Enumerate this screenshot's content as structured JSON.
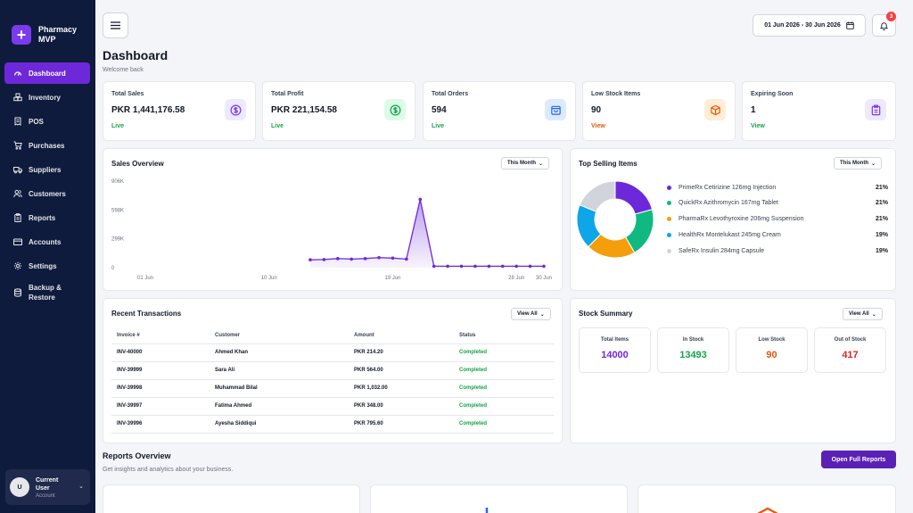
{
  "brand": {
    "name": "Pharmacy MVP",
    "logo": "+"
  },
  "sidebar": {
    "items": [
      {
        "label": "Dashboard",
        "icon": "gauge-icon",
        "active": true
      },
      {
        "label": "Inventory",
        "icon": "boxes-icon"
      },
      {
        "label": "POS",
        "icon": "receipt-icon"
      },
      {
        "label": "Purchases",
        "icon": "cart-icon"
      },
      {
        "label": "Suppliers",
        "icon": "truck-icon"
      },
      {
        "label": "Customers",
        "icon": "users-icon"
      },
      {
        "label": "Reports",
        "icon": "clipboard-icon"
      },
      {
        "label": "Accounts",
        "icon": "card-icon"
      },
      {
        "label": "Settings",
        "icon": "gear-icon"
      },
      {
        "label": "Backup & Restore",
        "icon": "database-icon"
      }
    ]
  },
  "user": {
    "initial": "U",
    "name": "Current User",
    "role": "Account"
  },
  "header": {
    "date_range": "01 Jun 2026 - 30 Jun 2026",
    "notification_count": "3",
    "title": "Dashboard",
    "subtitle": "Welcome back"
  },
  "stats": [
    {
      "title": "Total Sales",
      "value": "PKR 1,441,176.58",
      "link": "Live",
      "link_color": "#16a34a",
      "icon": "dollar-icon",
      "icon_color": "#7c3aed",
      "icon_bg": "#ede9fe"
    },
    {
      "title": "Total Profit",
      "value": "PKR 221,154.58",
      "link": "Live",
      "link_color": "#16a34a",
      "icon": "dollar-icon",
      "icon_color": "#16a34a",
      "icon_bg": "#dcfce7"
    },
    {
      "title": "Total Orders",
      "value": "594",
      "link": "Live",
      "link_color": "#16a34a",
      "icon": "bag-icon",
      "icon_color": "#2563eb",
      "icon_bg": "#dbeafe"
    },
    {
      "title": "Low Stock Items",
      "value": "90",
      "link": "View",
      "link_color": "#ea580c",
      "icon": "package-icon",
      "icon_color": "#ea580c",
      "icon_bg": "#ffedd5"
    },
    {
      "title": "Expiring Soon",
      "value": "1",
      "link": "View",
      "link_color": "#16a34a",
      "icon": "clipboard-icon",
      "icon_color": "#7c3aed",
      "icon_bg": "#ede9fe"
    }
  ],
  "sales_overview": {
    "title": "Sales Overview",
    "period": "This Month"
  },
  "top_selling": {
    "title": "Top Selling Items",
    "period": "This Month"
  },
  "recent_transactions": {
    "title": "Recent Transactions",
    "view_all": "View All",
    "columns": [
      "Invoice #",
      "Customer",
      "Amount",
      "Status"
    ],
    "rows": [
      [
        "INV-40000",
        "Ahmed Khan",
        "PKR 214.20",
        "Completed"
      ],
      [
        "INV-39999",
        "Sara Ali",
        "PKR 564.00",
        "Completed"
      ],
      [
        "INV-39998",
        "Muhammad Bilal",
        "PKR 1,032.00",
        "Completed"
      ],
      [
        "INV-39997",
        "Fatima Ahmed",
        "PKR 348.00",
        "Completed"
      ],
      [
        "INV-39996",
        "Ayesha Siddiqui",
        "PKR 795.60",
        "Completed"
      ]
    ]
  },
  "stock_summary": {
    "title": "Stock Summary",
    "view_all": "View All",
    "boxes": [
      {
        "label": "Total Items",
        "value": "14000",
        "color": "#6d28d9"
      },
      {
        "label": "In Stock",
        "value": "13493",
        "color": "#16a34a"
      },
      {
        "label": "Low Stock",
        "value": "90",
        "color": "#ea580c"
      },
      {
        "label": "Out of Stock",
        "value": "417",
        "color": "#dc2626"
      }
    ]
  },
  "reports_overview": {
    "title": "Reports Overview",
    "subtitle": "Get insights and analytics about your business.",
    "button": "Open Full Reports"
  },
  "chart_data": [
    {
      "type": "line",
      "x": [
        "01 Jun",
        "02 Jun",
        "03 Jun",
        "04 Jun",
        "05 Jun",
        "06 Jun",
        "07 Jun",
        "08 Jun",
        "09 Jun",
        "10 Jun",
        "11 Jun",
        "12 Jun",
        "13 Jun",
        "14 Jun",
        "15 Jun",
        "16 Jun",
        "17 Jun",
        "18 Jun",
        "19 Jun",
        "20 Jun",
        "21 Jun",
        "22 Jun",
        "23 Jun",
        "24 Jun",
        "25 Jun",
        "26 Jun",
        "27 Jun",
        "28 Jun",
        "29 Jun",
        "30 Jun"
      ],
      "series": [
        {
          "values": [
            null,
            null,
            null,
            null,
            null,
            null,
            null,
            null,
            null,
            null,
            null,
            null,
            82000,
            85000,
            95000,
            90000,
            95000,
            105000,
            100000,
            90000,
            715000,
            15000,
            15000,
            15000,
            15000,
            15000,
            15000,
            15000,
            15000,
            15000
          ],
          "color": "#6d28d9"
        }
      ],
      "x_tick_labels": [
        "01 Jun",
        "10 Jun",
        "19 Jun",
        "28 Jun",
        "30 Jun"
      ],
      "y_tick_labels": [
        "0",
        "299K",
        "598K",
        "906K"
      ],
      "ylim": [
        0,
        906000
      ],
      "grid": false,
      "fill": "area-under-line"
    },
    {
      "type": "pie",
      "style": "donut",
      "categories": [
        "PrimeRx Cetirizine 126mg Injection",
        "QuickRx Azithromycin 167mg Tablet",
        "PharmaRx Levothyroxine 206mg Suspension",
        "HealthRx Montelukast 245mg Cream",
        "SafeRx Insulin 284mg Capsule"
      ],
      "values": [
        21,
        21,
        21,
        19,
        19
      ],
      "labels": [
        "21%",
        "21%",
        "21%",
        "19%",
        "19%"
      ],
      "colors": [
        "#6d28d9",
        "#10b981",
        "#f59e0b",
        "#0ea5e9",
        "#d1d5db"
      ],
      "legend_placement": "right"
    }
  ]
}
